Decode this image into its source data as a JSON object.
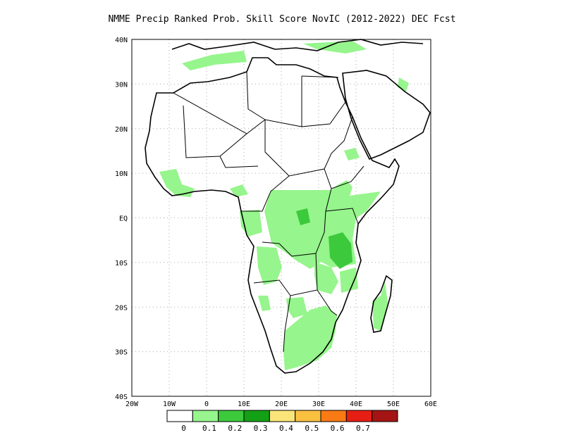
{
  "title": "NMME Precip Ranked Prob. Skill Score NovIC (2012-2022) DEC Fcst",
  "axes": {
    "lon_ticks": [
      "20W",
      "10W",
      "0",
      "10E",
      "20E",
      "30E",
      "40E",
      "50E",
      "60E"
    ],
    "lat_ticks": [
      "40N",
      "30N",
      "20N",
      "10N",
      "EQ",
      "10S",
      "20S",
      "30S",
      "40S"
    ],
    "lon_range": [
      -20,
      60
    ],
    "lat_range": [
      -40,
      40
    ]
  },
  "colorbar": {
    "labels": [
      "0",
      "0.1",
      "0.2",
      "0.3",
      "0.4",
      "0.5",
      "0.6",
      "0.7"
    ],
    "colors": [
      "#ffffff",
      "#96f58c",
      "#3cca3c",
      "#14a014",
      "#fae678",
      "#fac040",
      "#fa7a14",
      "#e61e14",
      "#a51414"
    ]
  },
  "colors": {
    "light_green": "#96f58c",
    "mid_green": "#3cca3c",
    "coast": "#000000",
    "grid": "#aaaaaa"
  }
}
